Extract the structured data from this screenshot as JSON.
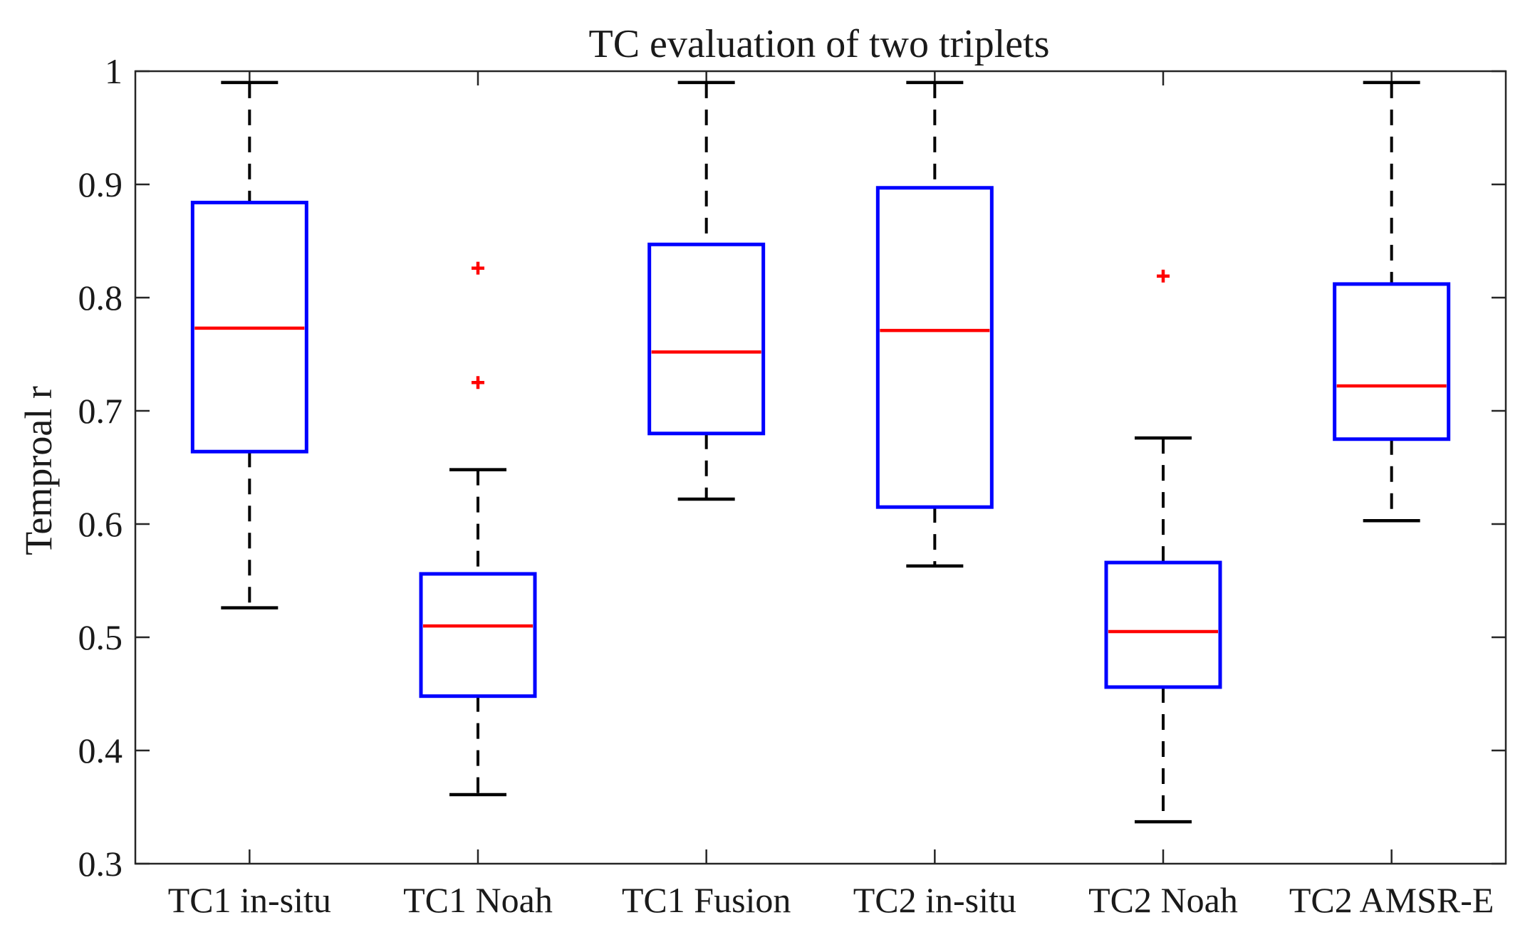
{
  "chart_data": {
    "type": "boxplot",
    "title": "TC evaluation of two triplets",
    "xlabel": "",
    "ylabel": "Temproal r",
    "ylim": [
      0.3,
      1.0
    ],
    "yticks": [
      "0.3",
      "0.4",
      "0.5",
      "0.6",
      "0.7",
      "0.8",
      "0.9",
      "1"
    ],
    "categories": [
      "TC1 in-situ",
      "TC1 Noah",
      "TC1 Fusion",
      "TC2 in-situ",
      "TC2 Noah",
      "TC2 AMSR-E"
    ],
    "boxes": [
      {
        "name": "TC1 in-situ",
        "whisker_low": 0.526,
        "q1": 0.664,
        "median": 0.773,
        "q3": 0.884,
        "whisker_high": 0.99,
        "outliers": []
      },
      {
        "name": "TC1 Noah",
        "whisker_low": 0.361,
        "q1": 0.448,
        "median": 0.51,
        "q3": 0.556,
        "whisker_high": 0.648,
        "outliers": [
          0.826,
          0.725
        ]
      },
      {
        "name": "TC1 Fusion",
        "whisker_low": 0.622,
        "q1": 0.68,
        "median": 0.752,
        "q3": 0.847,
        "whisker_high": 0.99,
        "outliers": []
      },
      {
        "name": "TC2 in-situ",
        "whisker_low": 0.563,
        "q1": 0.615,
        "median": 0.771,
        "q3": 0.897,
        "whisker_high": 0.99,
        "outliers": []
      },
      {
        "name": "TC2 Noah",
        "whisker_low": 0.337,
        "q1": 0.456,
        "median": 0.505,
        "q3": 0.566,
        "whisker_high": 0.676,
        "outliers": [
          0.819
        ]
      },
      {
        "name": "TC2 AMSR-E",
        "whisker_low": 0.603,
        "q1": 0.675,
        "median": 0.722,
        "q3": 0.812,
        "whisker_high": 0.99,
        "outliers": []
      }
    ],
    "colors": {
      "box": "#0000ff",
      "median": "#ff0000",
      "whisker": "#000000",
      "outlier": "#ff0000",
      "axis": "#262626"
    },
    "grid": false
  }
}
